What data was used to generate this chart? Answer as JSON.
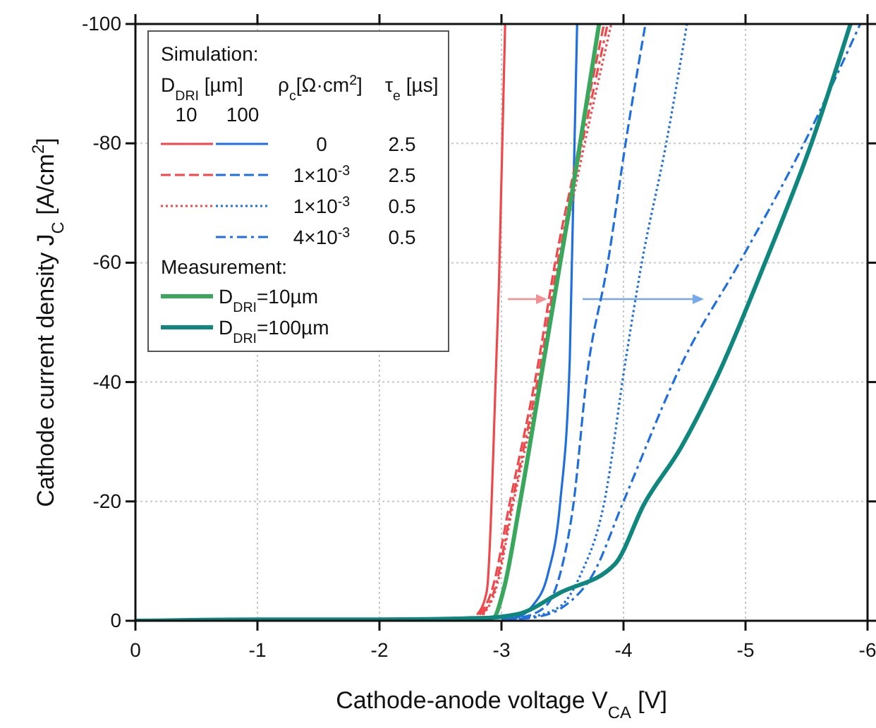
{
  "chart_data": {
    "type": "line",
    "xlabel": "Cathode-anode voltage V$_{CA}$ [V]",
    "ylabel": "Cathode current density J$_{C}$ [A/cm$^{2}$]",
    "xlim": [
      0,
      -6
    ],
    "xticks": [
      0,
      -1,
      -2,
      -3,
      -4,
      -5,
      -6
    ],
    "ylim": [
      0,
      -100
    ],
    "yticks": [
      0,
      -20,
      -40,
      -60,
      -80,
      -100
    ],
    "grid": true,
    "legend": "top left",
    "annotations": [
      "Simulation:",
      "D$_{DRI}$ [µm]",
      "ρ$_{c}$[Ω·cm$^{2}$]",
      "τ$_{e}$ [µs]",
      "10",
      "100",
      "0",
      "2.5",
      "1×10$^{-3}$",
      "2.5",
      "1×10$^{-3}$",
      "0.5",
      "4×10$^{-3}$",
      "0.5",
      "Measurement:"
    ],
    "series": [
      {
        "color": "#f0474a",
        "line_style": "solid",
        "x": [
          -2.8,
          -2.88,
          -2.96,
          -2.98,
          -3.03
        ],
        "values": [
          -1,
          -5,
          -45,
          -57,
          -100
        ]
      },
      {
        "color": "#1f6fe0",
        "line_style": "solid",
        "x": [
          -3.0,
          -3.11,
          -3.25,
          -3.38,
          -3.48,
          -3.56,
          -3.62
        ],
        "values": [
          -0.3,
          -0.5,
          -2.4,
          -7.8,
          -19.6,
          -44,
          -100
        ]
      },
      {
        "color": "#f0474a",
        "line_style": "dashed",
        "x": [
          -2.82,
          -2.92,
          -3.07,
          -3.3,
          -3.44,
          -3.59,
          -3.84
        ],
        "values": [
          -1,
          -5,
          -20,
          -43,
          -60,
          -75,
          -100
        ]
      },
      {
        "color": "#1f6fe0",
        "line_style": "dashed",
        "x": [
          -3.05,
          -3.15,
          -3.36,
          -3.48,
          -3.59,
          -3.7,
          -3.87,
          -4.02,
          -4.18
        ],
        "values": [
          -0.3,
          -0.5,
          -2.4,
          -7.8,
          -19.6,
          -41,
          -59.8,
          -80.4,
          -100
        ]
      },
      {
        "color": "#f0474a",
        "line_style": "dotted",
        "x": [
          -2.85,
          -2.95,
          -3.1,
          -3.34,
          -3.48,
          -3.63,
          -3.9
        ],
        "values": [
          -1,
          -5,
          -20,
          -43,
          -60,
          -75,
          -100
        ]
      },
      {
        "color": "#1f6fe0",
        "line_style": "dotted",
        "x": [
          -3.1,
          -3.2,
          -3.48,
          -3.65,
          -3.84,
          -4.02,
          -4.15,
          -4.35,
          -4.52
        ],
        "values": [
          -0.3,
          -0.5,
          -2.4,
          -7.8,
          -19.6,
          -44,
          -60,
          -80,
          -100
        ]
      },
      {
        "color": "#1f6fe0",
        "line_style": "dashdot",
        "x": [
          -3.15,
          -3.25,
          -3.51,
          -3.75,
          -4.0,
          -4.5,
          -4.95,
          -5.48,
          -5.94
        ],
        "values": [
          -0.3,
          -0.5,
          -2.4,
          -7.8,
          -20,
          -44,
          -60,
          -80,
          -100
        ]
      },
      {
        "color": "#f0474a",
        "line_style": "dashdot",
        "x": [
          -2.84,
          -2.94,
          -3.09,
          -3.32,
          -3.46,
          -3.61,
          -3.87
        ],
        "values": [
          -1,
          -5,
          -20,
          -43,
          -60,
          -75,
          -100
        ]
      },
      {
        "name": "D$_{DRI}$=10µm",
        "color": "#3aa85c",
        "line_style": "solid",
        "x": [
          -2.6,
          -2.75,
          -2.93,
          -3.02,
          -3.15,
          -3.35,
          -3.48,
          -3.61,
          -3.8
        ],
        "values": [
          -0.3,
          -0.4,
          -0.5,
          -5.4,
          -19.6,
          -44,
          -59.8,
          -75.6,
          -100
        ]
      },
      {
        "name": "D$_{DRI}$=100µm",
        "color": "#0f877f",
        "line_style": "solid",
        "x": [
          0,
          -1,
          -2,
          -2.8,
          -3.13,
          -3.48,
          -3.93,
          -4.17,
          -4.47,
          -4.77,
          -5.16,
          -5.54,
          -5.86
        ],
        "values": [
          0,
          -0.2,
          -0.2,
          -0.4,
          -1.1,
          -4.7,
          -9.5,
          -19.6,
          -29,
          -41,
          -60,
          -80,
          -100
        ]
      }
    ]
  }
}
